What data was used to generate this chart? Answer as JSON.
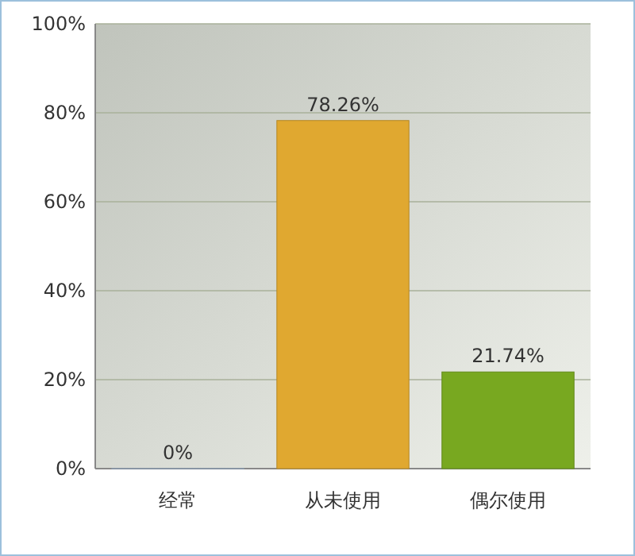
{
  "chart_data": {
    "type": "bar",
    "categories": [
      "经常",
      "从未使用",
      "偶尔使用"
    ],
    "values": [
      0,
      78.26,
      21.74
    ],
    "colors": [
      "#a8c8ec",
      "#e0a830",
      "#78a820"
    ],
    "value_labels": [
      "0%",
      "78.26%",
      "21.74%"
    ],
    "ylim": [
      0,
      100
    ],
    "yticks": [
      {
        "value": 0,
        "label": "0%"
      },
      {
        "value": 20,
        "label": "20%"
      },
      {
        "value": 40,
        "label": "40%"
      },
      {
        "value": 60,
        "label": "60%"
      },
      {
        "value": 80,
        "label": "80%"
      },
      {
        "value": 100,
        "label": "100%"
      }
    ],
    "grid": "y"
  }
}
